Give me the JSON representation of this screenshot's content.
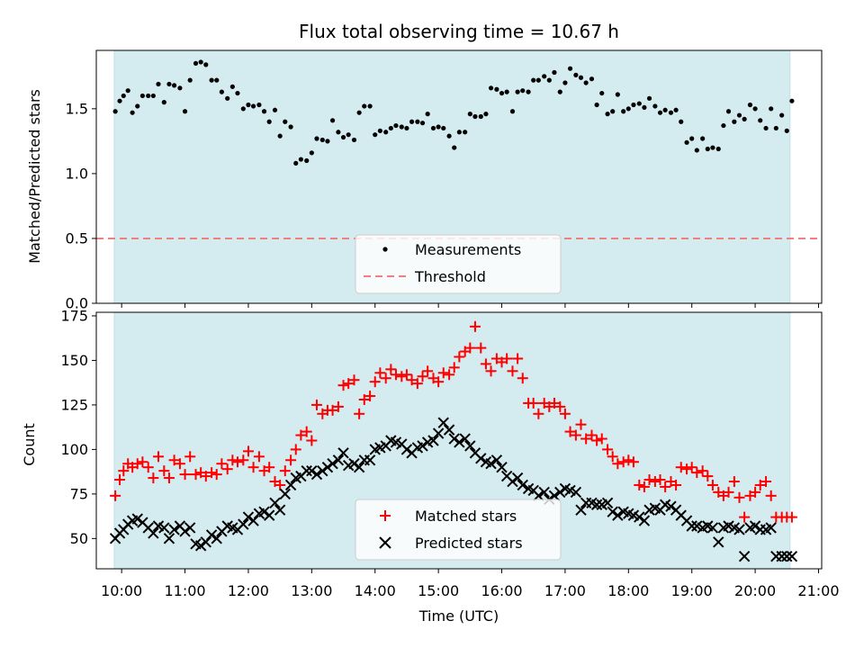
{
  "chart_data": [
    {
      "type": "scatter",
      "title": "Flux total observing time = 10.67 h",
      "ylabel": "Matched/Predicted stars",
      "xlabel": "",
      "ylim": [
        0,
        1.95
      ],
      "yticks": [
        "0.0",
        "0.5",
        "1.0",
        "1.5"
      ],
      "ytick_values": [
        0,
        0.5,
        1.0,
        1.5
      ],
      "shaded_region": {
        "start": "09:53",
        "end": "20:33",
        "color": "#d4ebf0"
      },
      "legend": {
        "placement": "lower-center",
        "entries": [
          "Measurements",
          "Threshold"
        ]
      },
      "threshold": {
        "name": "Threshold",
        "value": 0.5,
        "color": "#f08080"
      },
      "series": [
        {
          "name": "Measurements",
          "color": "#000000",
          "x_hours": [
            9.9,
            9.97,
            10.03,
            10.1,
            10.17,
            10.25,
            10.33,
            10.42,
            10.5,
            10.58,
            10.67,
            10.75,
            10.83,
            10.92,
            11.0,
            11.08,
            11.17,
            11.25,
            11.33,
            11.42,
            11.5,
            11.58,
            11.67,
            11.75,
            11.83,
            11.92,
            12.0,
            12.08,
            12.17,
            12.25,
            12.33,
            12.42,
            12.5,
            12.58,
            12.67,
            12.75,
            12.83,
            12.92,
            13.0,
            13.08,
            13.17,
            13.25,
            13.33,
            13.42,
            13.5,
            13.58,
            13.67,
            13.75,
            13.83,
            13.92,
            14.0,
            14.08,
            14.17,
            14.25,
            14.33,
            14.42,
            14.5,
            14.58,
            14.67,
            14.75,
            14.83,
            14.92,
            15.0,
            15.08,
            15.17,
            15.25,
            15.33,
            15.42,
            15.5,
            15.58,
            15.67,
            15.75,
            15.83,
            15.92,
            16.0,
            16.08,
            16.17,
            16.25,
            16.33,
            16.42,
            16.5,
            16.58,
            16.67,
            16.75,
            16.83,
            16.92,
            17.0,
            17.08,
            17.17,
            17.25,
            17.33,
            17.42,
            17.5,
            17.58,
            17.67,
            17.75,
            17.83,
            17.92,
            18.0,
            18.08,
            18.17,
            18.25,
            18.33,
            18.42,
            18.5,
            18.58,
            18.67,
            18.75,
            18.83,
            18.92,
            19.0,
            19.08,
            19.17,
            19.25,
            19.33,
            19.42,
            19.5,
            19.58,
            19.67,
            19.75,
            19.83,
            19.92,
            20.0,
            20.08,
            20.17,
            20.25,
            20.33,
            20.42,
            20.5,
            20.58
          ],
          "y": [
            1.48,
            1.56,
            1.6,
            1.64,
            1.47,
            1.52,
            1.6,
            1.6,
            1.6,
            1.69,
            1.55,
            1.69,
            1.68,
            1.66,
            1.48,
            1.72,
            1.85,
            1.86,
            1.84,
            1.72,
            1.72,
            1.63,
            1.58,
            1.67,
            1.62,
            1.5,
            1.53,
            1.52,
            1.53,
            1.48,
            1.4,
            1.49,
            1.29,
            1.4,
            1.36,
            1.08,
            1.11,
            1.1,
            1.16,
            1.27,
            1.26,
            1.25,
            1.41,
            1.32,
            1.28,
            1.3,
            1.26,
            1.47,
            1.52,
            1.52,
            1.3,
            1.33,
            1.32,
            1.35,
            1.37,
            1.36,
            1.35,
            1.4,
            1.4,
            1.39,
            1.46,
            1.35,
            1.36,
            1.35,
            1.29,
            1.2,
            1.32,
            1.32,
            1.46,
            1.44,
            1.44,
            1.46,
            1.66,
            1.65,
            1.62,
            1.63,
            1.48,
            1.63,
            1.64,
            1.63,
            1.72,
            1.72,
            1.75,
            1.72,
            1.78,
            1.63,
            1.7,
            1.81,
            1.76,
            1.74,
            1.7,
            1.73,
            1.53,
            1.62,
            1.46,
            1.48,
            1.61,
            1.48,
            1.5,
            1.53,
            1.54,
            1.51,
            1.58,
            1.52,
            1.47,
            1.49,
            1.47,
            1.49,
            1.4,
            1.24,
            1.27,
            1.18,
            1.27,
            1.19,
            1.2,
            1.19,
            1.37,
            1.48,
            1.4,
            1.45,
            1.42,
            1.53,
            1.5,
            1.41,
            1.35,
            1.5,
            1.35,
            1.45,
            1.33,
            1.56
          ]
        }
      ]
    },
    {
      "type": "scatter",
      "title": "",
      "ylabel": "Count",
      "xlabel": "Time (UTC)",
      "xlim_hours": [
        9.6,
        21.05
      ],
      "xticks": [
        "10:00",
        "11:00",
        "12:00",
        "13:00",
        "14:00",
        "15:00",
        "16:00",
        "17:00",
        "18:00",
        "19:00",
        "20:00",
        "21:00"
      ],
      "ylim": [
        33,
        177
      ],
      "yticks": [
        "50",
        "75",
        "100",
        "125",
        "150",
        "175"
      ],
      "ytick_values": [
        50,
        75,
        100,
        125,
        150,
        175
      ],
      "shaded_region": {
        "start": "09:53",
        "end": "20:33",
        "color": "#d4ebf0"
      },
      "legend": {
        "placement": "lower-center",
        "entries": [
          "Matched stars",
          "Predicted stars"
        ]
      },
      "series": [
        {
          "name": "Matched stars",
          "marker": "plus",
          "color": "#ff0000",
          "x_hours": [
            9.9,
            9.97,
            10.03,
            10.1,
            10.17,
            10.25,
            10.33,
            10.42,
            10.5,
            10.58,
            10.67,
            10.75,
            10.83,
            10.92,
            11.0,
            11.08,
            11.17,
            11.25,
            11.33,
            11.42,
            11.5,
            11.58,
            11.67,
            11.75,
            11.83,
            11.92,
            12.0,
            12.08,
            12.17,
            12.25,
            12.33,
            12.42,
            12.5,
            12.58,
            12.67,
            12.75,
            12.83,
            12.92,
            13.0,
            13.08,
            13.17,
            13.25,
            13.33,
            13.42,
            13.5,
            13.58,
            13.67,
            13.75,
            13.83,
            13.92,
            14.0,
            14.08,
            14.17,
            14.25,
            14.33,
            14.42,
            14.5,
            14.58,
            14.67,
            14.75,
            14.83,
            14.92,
            15.0,
            15.08,
            15.17,
            15.25,
            15.33,
            15.42,
            15.5,
            15.58,
            15.67,
            15.75,
            15.83,
            15.92,
            16.0,
            16.08,
            16.17,
            16.25,
            16.33,
            16.42,
            16.5,
            16.58,
            16.67,
            16.75,
            16.83,
            16.92,
            17.0,
            17.08,
            17.17,
            17.25,
            17.33,
            17.42,
            17.5,
            17.58,
            17.67,
            17.75,
            17.83,
            17.92,
            18.0,
            18.08,
            18.17,
            18.25,
            18.33,
            18.42,
            18.5,
            18.58,
            18.67,
            18.75,
            18.83,
            18.92,
            19.0,
            19.08,
            19.17,
            19.25,
            19.33,
            19.42,
            19.5,
            19.58,
            19.67,
            19.75,
            19.83,
            19.92,
            20.0,
            20.08,
            20.17,
            20.25,
            20.33,
            20.42,
            20.5,
            20.58
          ],
          "y": [
            74,
            83,
            88,
            92,
            90,
            92,
            93,
            90,
            84,
            96,
            88,
            84,
            94,
            92,
            86,
            96,
            86,
            87,
            85,
            87,
            86,
            92,
            89,
            94,
            93,
            94,
            99,
            90,
            96,
            88,
            90,
            82,
            80,
            88,
            94,
            100,
            108,
            110,
            105,
            125,
            120,
            122,
            122,
            124,
            136,
            137,
            139,
            120,
            128,
            130,
            138,
            143,
            140,
            145,
            142,
            141,
            142,
            139,
            137,
            141,
            144,
            140,
            138,
            143,
            142,
            146,
            152,
            155,
            157,
            169,
            157,
            148,
            144,
            151,
            149,
            151,
            144,
            151,
            140,
            126,
            126,
            120,
            126,
            124,
            126,
            124,
            120,
            110,
            108,
            114,
            106,
            108,
            105,
            106,
            100,
            96,
            92,
            93,
            94,
            93,
            80,
            79,
            83,
            82,
            83,
            79,
            82,
            80,
            90,
            89,
            90,
            87,
            88,
            85,
            80,
            76,
            74,
            76,
            82,
            73,
            62,
            74,
            76,
            80,
            82,
            74,
            62,
            62,
            62,
            62
          ]
        },
        {
          "name": "Predicted stars",
          "marker": "x",
          "color": "#000000",
          "x_hours": [
            9.9,
            9.97,
            10.03,
            10.1,
            10.17,
            10.25,
            10.33,
            10.42,
            10.5,
            10.58,
            10.67,
            10.75,
            10.83,
            10.92,
            11.0,
            11.08,
            11.17,
            11.25,
            11.33,
            11.42,
            11.5,
            11.58,
            11.67,
            11.75,
            11.83,
            11.92,
            12.0,
            12.08,
            12.17,
            12.25,
            12.33,
            12.42,
            12.5,
            12.58,
            12.67,
            12.75,
            12.83,
            12.92,
            13.0,
            13.08,
            13.17,
            13.25,
            13.33,
            13.42,
            13.5,
            13.58,
            13.67,
            13.75,
            13.83,
            13.92,
            14.0,
            14.08,
            14.17,
            14.25,
            14.33,
            14.42,
            14.5,
            14.58,
            14.67,
            14.75,
            14.83,
            14.92,
            15.0,
            15.08,
            15.17,
            15.25,
            15.33,
            15.42,
            15.5,
            15.58,
            15.67,
            15.75,
            15.83,
            15.92,
            16.0,
            16.08,
            16.17,
            16.25,
            16.33,
            16.42,
            16.5,
            16.58,
            16.67,
            16.75,
            16.83,
            16.92,
            17.0,
            17.08,
            17.17,
            17.25,
            17.33,
            17.42,
            17.5,
            17.58,
            17.67,
            17.75,
            17.83,
            17.92,
            18.0,
            18.08,
            18.17,
            18.25,
            18.33,
            18.42,
            18.5,
            18.58,
            18.67,
            18.75,
            18.83,
            18.92,
            19.0,
            19.08,
            19.17,
            19.25,
            19.33,
            19.42,
            19.5,
            19.58,
            19.67,
            19.75,
            19.83,
            19.92,
            20.0,
            20.08,
            20.17,
            20.25,
            20.33,
            20.42,
            20.5,
            20.58
          ],
          "y": [
            50,
            53,
            55,
            58,
            60,
            61,
            59,
            56,
            53,
            57,
            56,
            50,
            55,
            57,
            54,
            56,
            47,
            46,
            48,
            52,
            50,
            54,
            57,
            56,
            55,
            58,
            62,
            60,
            64,
            65,
            63,
            70,
            66,
            75,
            80,
            84,
            85,
            88,
            88,
            86,
            88,
            90,
            92,
            94,
            98,
            91,
            92,
            90,
            94,
            94,
            100,
            101,
            102,
            105,
            104,
            103,
            100,
            98,
            101,
            102,
            104,
            105,
            109,
            115,
            111,
            106,
            104,
            106,
            102,
            98,
            95,
            93,
            92,
            94,
            90,
            85,
            82,
            84,
            80,
            78,
            77,
            74,
            76,
            72,
            74,
            76,
            78,
            77,
            76,
            66,
            70,
            70,
            69,
            69,
            70,
            65,
            63,
            65,
            64,
            63,
            62,
            60,
            66,
            67,
            66,
            69,
            68,
            66,
            63,
            60,
            57,
            57,
            56,
            57,
            56,
            48,
            56,
            57,
            56,
            55,
            40,
            56,
            57,
            55,
            55,
            56,
            40,
            40,
            40,
            40
          ]
        }
      ]
    }
  ]
}
